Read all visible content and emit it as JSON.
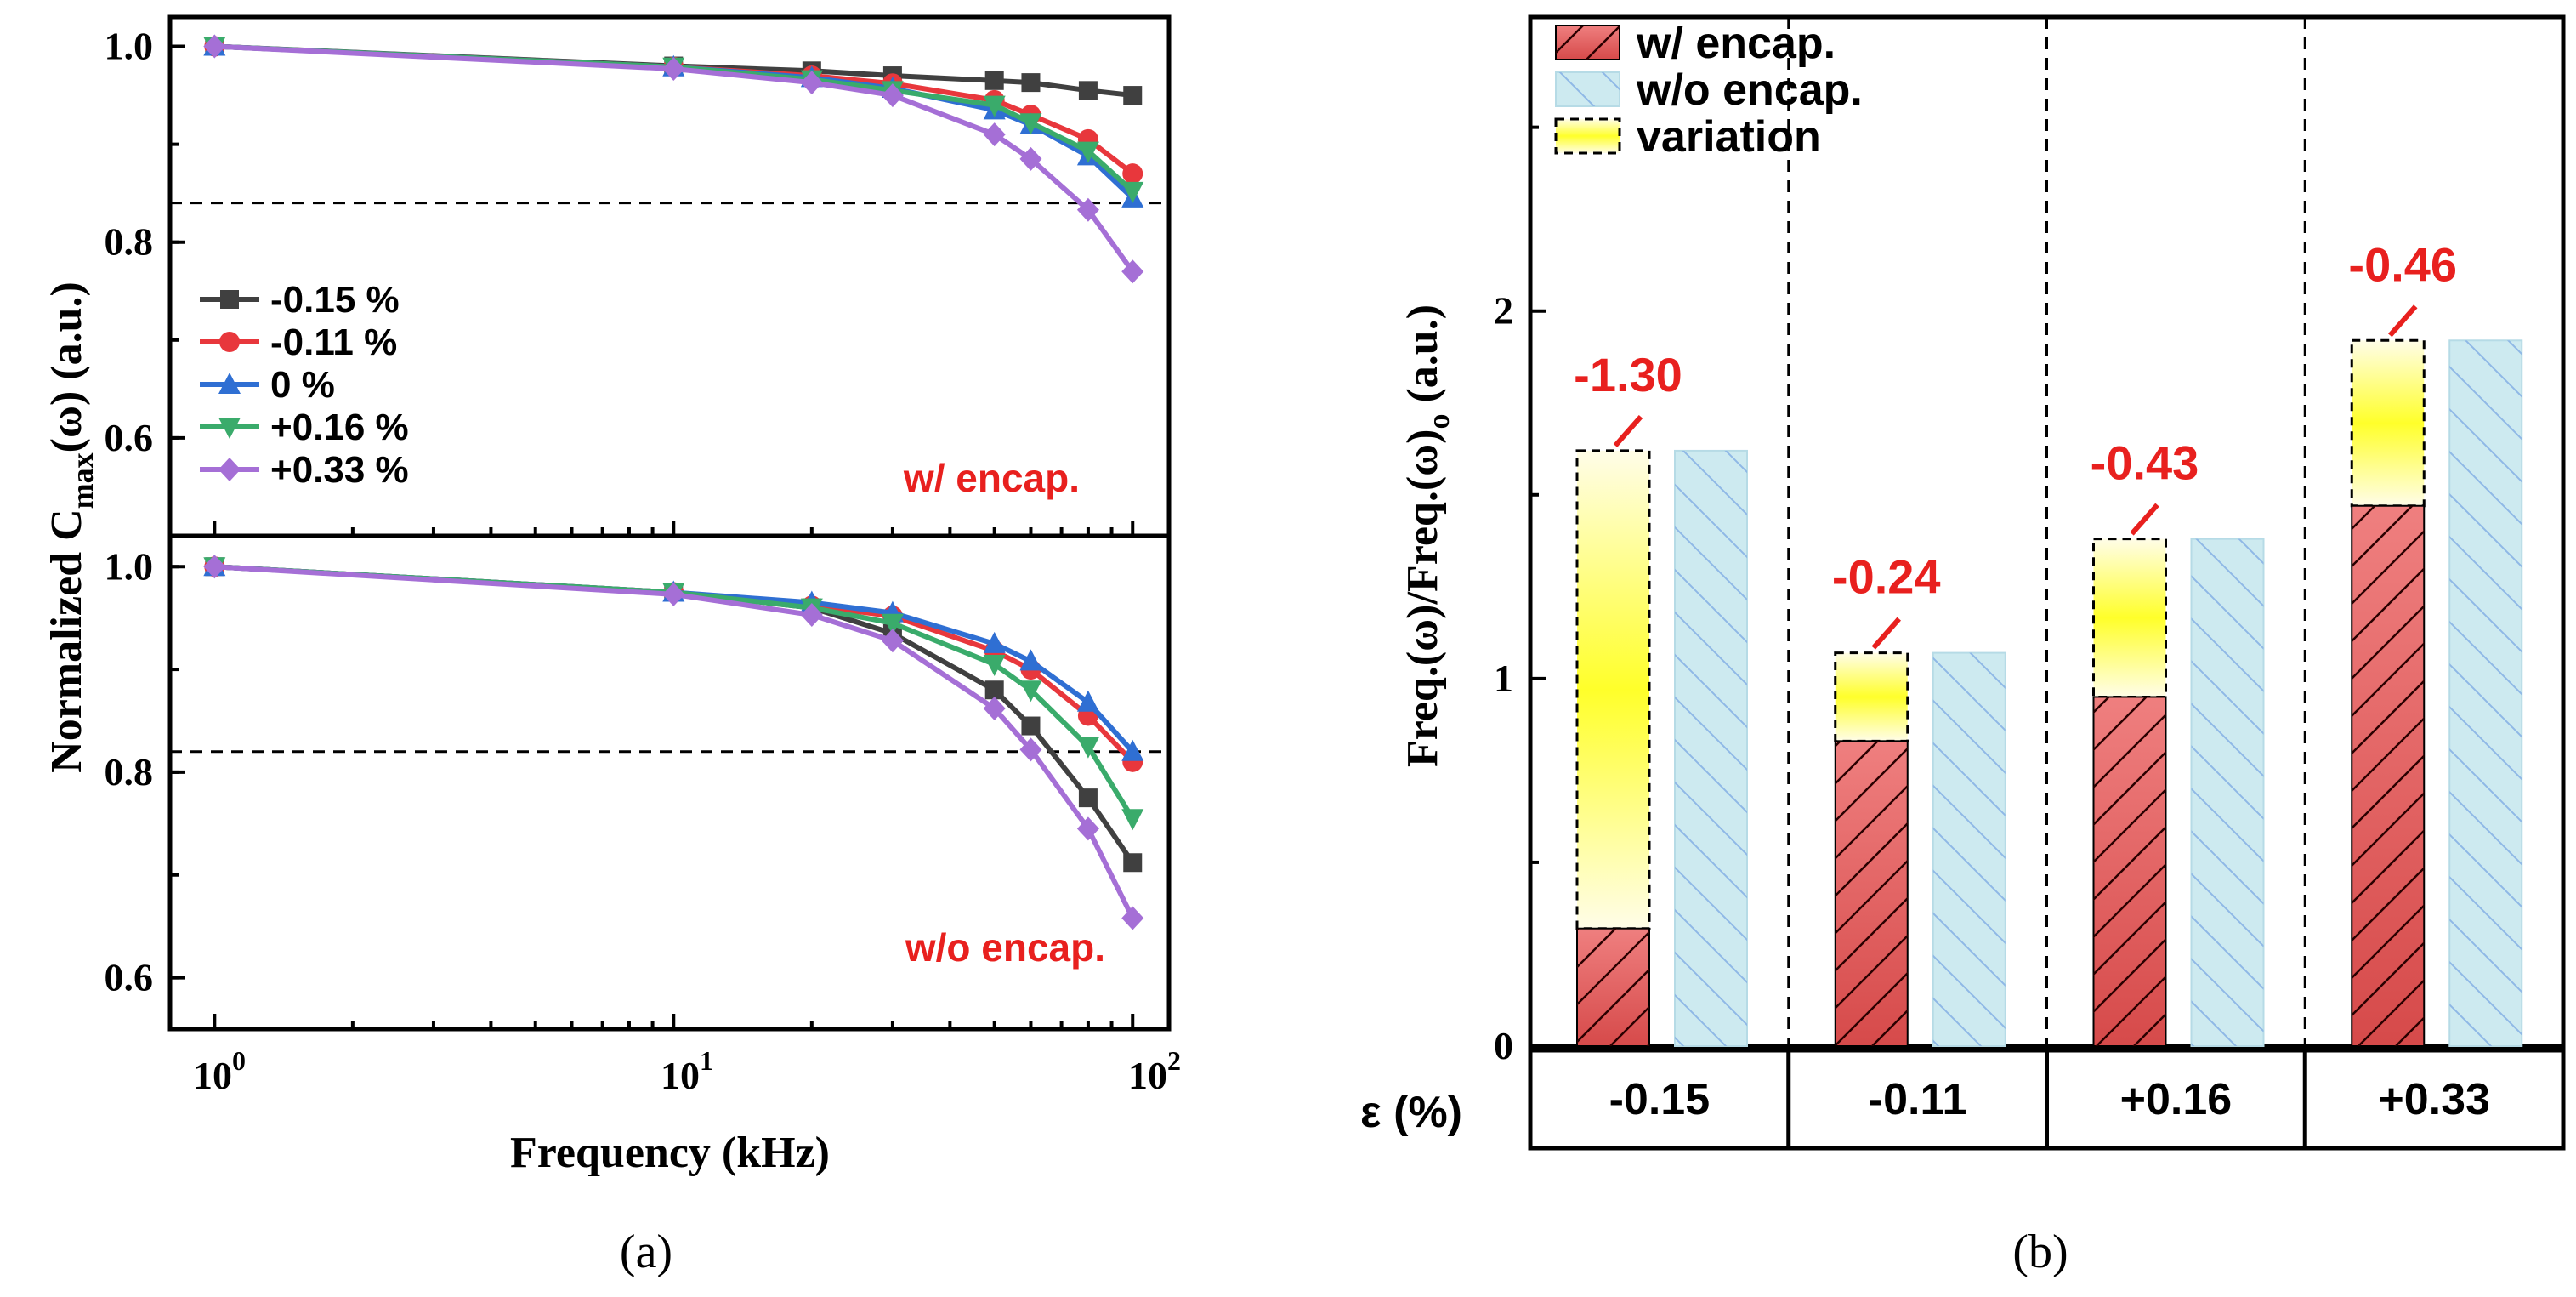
{
  "chart_data": [
    {
      "type": "line",
      "panel_label": "(a)",
      "xscale": "log",
      "xlabel": "Frequency (kHz)",
      "ylabel": "Normalized C",
      "ylabel_sub": "max",
      "ylabel_suffix": "(ω) (a.u.)",
      "x": [
        1,
        10,
        20,
        30,
        50,
        60,
        80,
        100
      ],
      "xticks": [
        {
          "base": "10",
          "exp": "0"
        },
        {
          "base": "10",
          "exp": "1"
        },
        {
          "base": "10",
          "exp": "2"
        }
      ],
      "xlim": [
        0.8,
        120
      ],
      "legend": {
        "position": "middle-left"
      },
      "colors": [
        "#404040",
        "#e8373c",
        "#2f6fd3",
        "#3aab6b",
        "#a56fd6"
      ],
      "markers": [
        "square",
        "circle",
        "triangle-up",
        "triangle-down",
        "diamond"
      ],
      "panels": [
        {
          "id": "top",
          "annotation": "w/ encap.",
          "annotation_color": "#e8201e",
          "ylim": [
            0.5,
            1.03
          ],
          "yticks": [
            "0.6",
            "0.8",
            "1.0"
          ],
          "hline": 0.84,
          "series": [
            {
              "name": "-0.15 %",
              "values": [
                1.0,
                0.98,
                0.975,
                0.97,
                0.965,
                0.963,
                0.955,
                0.95
              ]
            },
            {
              "name": "-0.11 %",
              "values": [
                1.0,
                0.979,
                0.97,
                0.962,
                0.945,
                0.93,
                0.905,
                0.87
              ]
            },
            {
              "name": "0 %",
              "values": [
                1.0,
                0.979,
                0.968,
                0.957,
                0.935,
                0.92,
                0.888,
                0.845
              ]
            },
            {
              "name": "+0.16 %",
              "values": [
                1.0,
                0.979,
                0.966,
                0.955,
                0.94,
                0.922,
                0.893,
                0.852
              ]
            },
            {
              "name": "+0.33 %",
              "values": [
                1.0,
                0.977,
                0.963,
                0.95,
                0.91,
                0.885,
                0.833,
                0.77
              ]
            }
          ]
        },
        {
          "id": "bottom",
          "annotation": "w/o encap.",
          "annotation_color": "#e8201e",
          "ylim": [
            0.55,
            1.03
          ],
          "yticks": [
            "0.6",
            "0.8",
            "1.0"
          ],
          "hline": 0.82,
          "series": [
            {
              "name": "-0.15 %",
              "values": [
                1.0,
                0.975,
                0.96,
                0.935,
                0.88,
                0.845,
                0.775,
                0.712
              ]
            },
            {
              "name": "-0.11 %",
              "values": [
                1.0,
                0.975,
                0.962,
                0.952,
                0.918,
                0.9,
                0.855,
                0.81
              ]
            },
            {
              "name": "0 %",
              "values": [
                1.0,
                0.975,
                0.965,
                0.955,
                0.925,
                0.908,
                0.868,
                0.82
              ]
            },
            {
              "name": "+0.16 %",
              "values": [
                1.0,
                0.975,
                0.96,
                0.945,
                0.905,
                0.88,
                0.825,
                0.755
              ]
            },
            {
              "name": "+0.33 %",
              "values": [
                1.0,
                0.973,
                0.953,
                0.928,
                0.862,
                0.822,
                0.745,
                0.658
              ]
            }
          ]
        }
      ]
    },
    {
      "type": "bar",
      "panel_label": "(b)",
      "ylabel": "Freq.(ω)/Freq.(ω)",
      "ylabel_sub": "o",
      "ylabel_suffix": " (a.u.)",
      "ylim": [
        0,
        2.8
      ],
      "yticks": [
        "0",
        "1",
        "2"
      ],
      "table_header": "ε (%)",
      "categories": [
        "-0.15",
        "-0.11",
        "+0.16",
        "+0.33"
      ],
      "legend": [
        "w/ encap.",
        "w/o encap.",
        "variation"
      ],
      "colors": {
        "encap": "#e86a6a",
        "no_encap": "#cdeaf0",
        "variation": "#ffff40",
        "label": "#e8201e"
      },
      "series": [
        {
          "name": "w/ encap.",
          "values": [
            0.32,
            0.83,
            0.95,
            1.47
          ]
        },
        {
          "name": "w/o encap.",
          "values": [
            1.62,
            1.07,
            1.38,
            1.92
          ]
        }
      ],
      "variation_labels": [
        "-1.30",
        "-0.24",
        "-0.43",
        "-0.46"
      ]
    }
  ]
}
